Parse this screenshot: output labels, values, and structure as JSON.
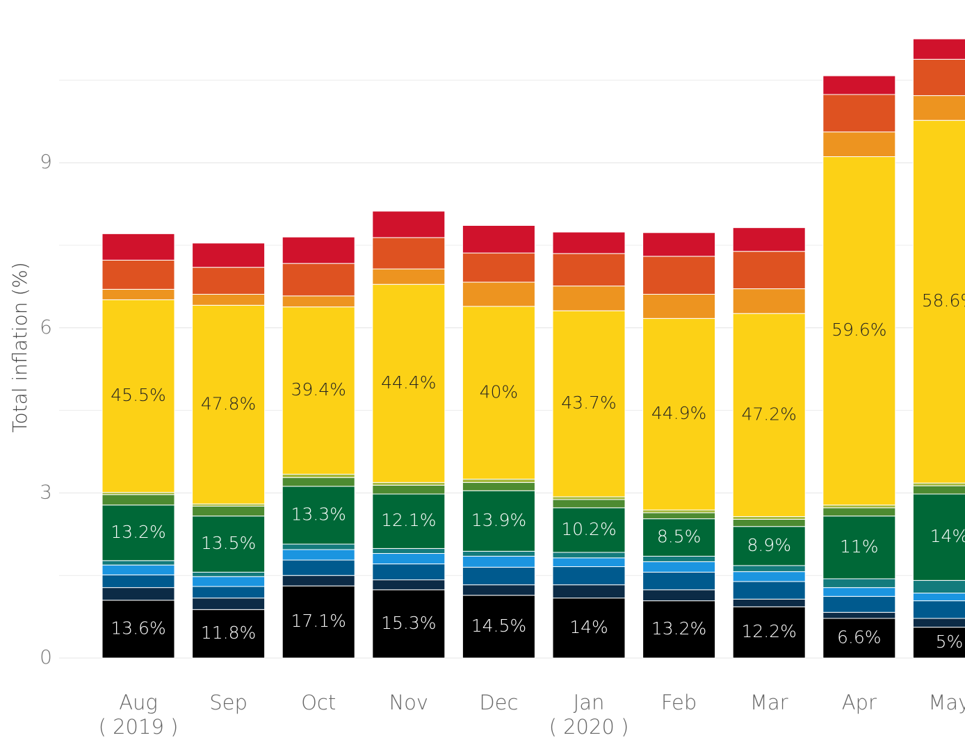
{
  "chart_data": {
    "type": "stacked_bar",
    "ylabel": "Total inflation (%)",
    "categories": [
      "Aug\n( 2019 )",
      "Sep",
      "Oct",
      "Nov",
      "Dec",
      "Jan\n( 2020 )",
      "Feb",
      "Mar",
      "Apr",
      "May"
    ],
    "ylim": [
      0,
      12
    ],
    "yticks": [
      0,
      3,
      6,
      9
    ],
    "minor_yticks": [
      1.5,
      4.5,
      7.5,
      10.5
    ],
    "grid": true,
    "series": [
      {
        "color": "#000000",
        "values": [
          1.05,
          0.88,
          1.31,
          1.24,
          1.14,
          1.09,
          1.04,
          0.93,
          0.72,
          0.56
        ],
        "labels": [
          "13.6%",
          "11.8%",
          "17.1%",
          "15.3%",
          "14.5%",
          "14%",
          "13.2%",
          "12.2%",
          "6.6%",
          "5%"
        ],
        "label_color": "#ffffff"
      },
      {
        "color": "#0c2b46",
        "values": [
          0.23,
          0.21,
          0.19,
          0.18,
          0.19,
          0.24,
          0.2,
          0.14,
          0.11,
          0.16
        ]
      },
      {
        "color": "#005a8e",
        "values": [
          0.23,
          0.21,
          0.28,
          0.29,
          0.32,
          0.33,
          0.32,
          0.32,
          0.29,
          0.32
        ]
      },
      {
        "color": "#1b95e0",
        "values": [
          0.18,
          0.18,
          0.19,
          0.19,
          0.2,
          0.16,
          0.19,
          0.18,
          0.16,
          0.14
        ]
      },
      {
        "color": "#137b7c",
        "values": [
          0.08,
          0.08,
          0.1,
          0.09,
          0.09,
          0.1,
          0.1,
          0.11,
          0.16,
          0.23
        ]
      },
      {
        "color": "#006837",
        "values": [
          1.01,
          1.02,
          1.05,
          0.99,
          1.1,
          0.81,
          0.68,
          0.71,
          1.14,
          1.57
        ],
        "labels": [
          "13.2%",
          "13.5%",
          "13.3%",
          "12.1%",
          "13.9%",
          "10.2%",
          "8.5%",
          "8.9%",
          "11%",
          "14%"
        ],
        "label_color": "#ffffff"
      },
      {
        "color": "#4d8b31",
        "values": [
          0.19,
          0.18,
          0.16,
          0.16,
          0.15,
          0.15,
          0.11,
          0.13,
          0.15,
          0.15
        ]
      },
      {
        "color": "#a4b83a",
        "values": [
          0.04,
          0.04,
          0.06,
          0.05,
          0.06,
          0.05,
          0.05,
          0.05,
          0.05,
          0.05
        ]
      },
      {
        "color": "#fcd116",
        "values": [
          3.5,
          3.61,
          3.04,
          3.6,
          3.14,
          3.38,
          3.48,
          3.69,
          6.33,
          6.59
        ],
        "labels": [
          "45.5%",
          "47.8%",
          "39.4%",
          "44.4%",
          "40%",
          "43.7%",
          "44.9%",
          "47.2%",
          "59.6%",
          "58.6%"
        ],
        "label_color": "#222222"
      },
      {
        "color": "#ed9420",
        "values": [
          0.19,
          0.2,
          0.2,
          0.28,
          0.44,
          0.45,
          0.44,
          0.45,
          0.45,
          0.45
        ]
      },
      {
        "color": "#de5221",
        "values": [
          0.53,
          0.49,
          0.59,
          0.57,
          0.53,
          0.59,
          0.69,
          0.68,
          0.68,
          0.66
        ]
      },
      {
        "color": "#d0122c",
        "values": [
          0.48,
          0.44,
          0.48,
          0.48,
          0.5,
          0.39,
          0.43,
          0.43,
          0.34,
          0.37
        ]
      }
    ]
  }
}
